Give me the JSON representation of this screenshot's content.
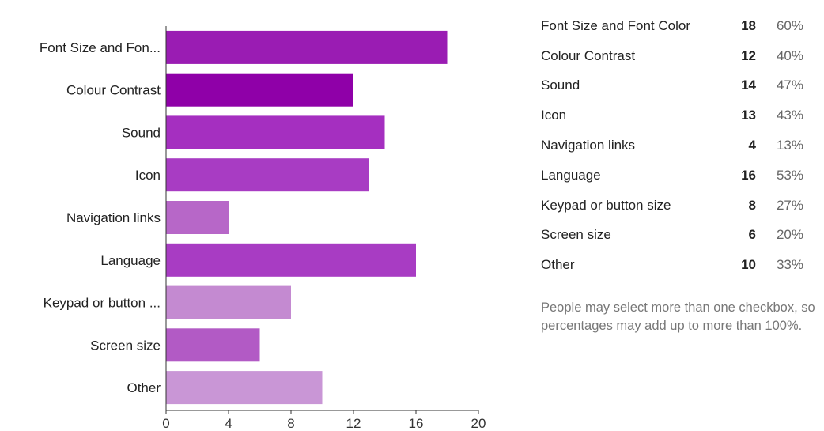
{
  "chart_data": {
    "type": "bar",
    "orientation": "horizontal",
    "categories": [
      "Font Size and Fon...",
      "Colour Contrast",
      "Sound",
      "Icon",
      "Navigation links",
      "Language",
      "Keypad or button ...",
      "Screen size",
      "Other"
    ],
    "values": [
      18,
      12,
      14,
      13,
      4,
      16,
      8,
      6,
      10
    ],
    "colors": [
      "#9a1cb3",
      "#8f00a8",
      "#a52fc0",
      "#a83cc3",
      "#b767c8",
      "#a83cc3",
      "#c48ad1",
      "#b25ac5",
      "#c996d6"
    ],
    "xlim": [
      0,
      20
    ],
    "xticks": [
      0,
      4,
      8,
      12,
      16,
      20
    ],
    "grid": false
  },
  "summary": {
    "rows": [
      {
        "label": "Font Size and Font Color",
        "count": "18",
        "percent": "60%"
      },
      {
        "label": "Colour Contrast",
        "count": "12",
        "percent": "40%"
      },
      {
        "label": "Sound",
        "count": "14",
        "percent": "47%"
      },
      {
        "label": "Icon",
        "count": "13",
        "percent": "43%"
      },
      {
        "label": "Navigation links",
        "count": "4",
        "percent": "13%"
      },
      {
        "label": "Language",
        "count": "16",
        "percent": "53%"
      },
      {
        "label": "Keypad or button size",
        "count": "8",
        "percent": "27%"
      },
      {
        "label": "Screen size",
        "count": "6",
        "percent": "20%"
      },
      {
        "label": "Other",
        "count": "10",
        "percent": "33%"
      }
    ],
    "note": "People may select more than one checkbox, so percentages may add up to more than 100%."
  }
}
